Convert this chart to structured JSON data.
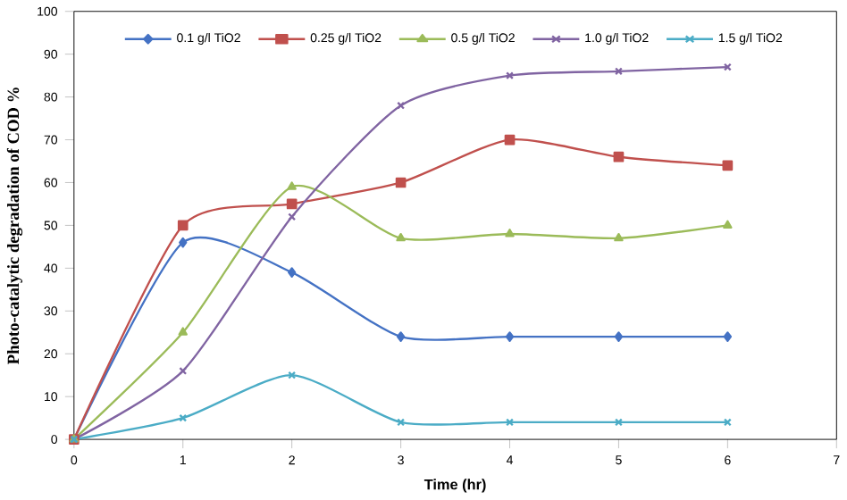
{
  "chart_data": {
    "type": "line",
    "xlabel": "Time (hr)",
    "ylabel": "Photo-catalytic degradation of COD %",
    "x": [
      0,
      1,
      2,
      3,
      4,
      5,
      6
    ],
    "series": [
      {
        "name": "0.1 g/l TiO2",
        "color": "#4472c4",
        "marker": "diamond",
        "values": [
          0,
          46,
          39,
          24,
          24,
          24,
          24
        ]
      },
      {
        "name": "0.25 g/l TiO2",
        "color": "#c0504d",
        "marker": "square",
        "values": [
          0,
          50,
          55,
          60,
          70,
          66,
          64
        ]
      },
      {
        "name": "0.5 g/l TiO2",
        "color": "#9bbb59",
        "marker": "triangle",
        "values": [
          0,
          25,
          59,
          47,
          48,
          47,
          50
        ]
      },
      {
        "name": "1.0 g/l TiO2",
        "color": "#8064a2",
        "marker": "cross",
        "values": [
          0,
          16,
          52,
          78,
          85,
          86,
          87
        ]
      },
      {
        "name": "1.5 g/l TiO2",
        "color": "#4bacc6",
        "marker": "cross",
        "values": [
          0,
          5,
          15,
          4,
          4,
          4,
          4
        ]
      }
    ],
    "xlim": [
      0,
      7
    ],
    "xticks": [
      0,
      1,
      2,
      3,
      4,
      5,
      6,
      7
    ],
    "ylim": [
      0,
      100
    ],
    "yticks": [
      0,
      10,
      20,
      30,
      40,
      50,
      60,
      70,
      80,
      90,
      100
    ],
    "grid": false,
    "legend": "top",
    "line_style": "solid"
  }
}
